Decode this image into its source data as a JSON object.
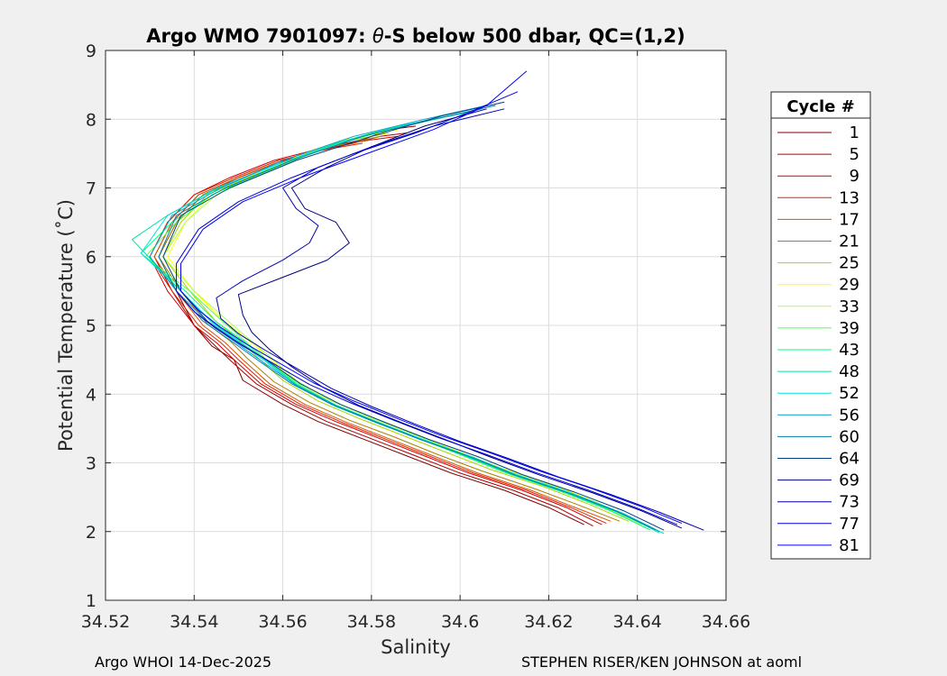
{
  "chart_data": {
    "type": "line",
    "title": "Argo WMO 7901097: θ-S below 500 dbar,  QC=(1,2)",
    "title_parts": {
      "before": "Argo WMO 7901097: ",
      "theta": "θ",
      "after": "-S below 500 dbar,  QC=(1,2)"
    },
    "xlabel": "Salinity",
    "ylabel": "Potential Temperature (˚C)",
    "xlim": [
      34.52,
      34.66
    ],
    "ylim": [
      1,
      9
    ],
    "xticks": [
      "34.52",
      "34.54",
      "34.56",
      "34.58",
      "34.6",
      "34.62",
      "34.64",
      "34.66"
    ],
    "yticks": [
      "1",
      "2",
      "3",
      "4",
      "5",
      "6",
      "7",
      "8",
      "9"
    ],
    "grid": true,
    "legend_title": "Cycle #",
    "legend_position": "outside-right",
    "series": [
      {
        "name": "1",
        "color": "#800000",
        "x": [
          34.628,
          34.62,
          34.61,
          34.598,
          34.588,
          34.578,
          34.568,
          34.56,
          34.551,
          34.549,
          34.544,
          34.54,
          34.536,
          34.532,
          34.536,
          34.542,
          34.55,
          34.56,
          34.57,
          34.578,
          34.584,
          34.59
        ],
        "y": [
          2.1,
          2.35,
          2.6,
          2.85,
          3.1,
          3.35,
          3.6,
          3.85,
          4.2,
          4.5,
          4.7,
          5.0,
          5.5,
          6.0,
          6.5,
          6.9,
          7.15,
          7.4,
          7.6,
          7.7,
          7.85,
          7.9
        ]
      },
      {
        "name": "5",
        "color": "#aa0000",
        "x": [
          34.63,
          34.622,
          34.612,
          34.6,
          34.59,
          34.58,
          34.57,
          34.562,
          34.554,
          34.548,
          34.544,
          34.54,
          34.535,
          34.531,
          34.535,
          34.541,
          34.55,
          34.558,
          34.568,
          34.576,
          34.582,
          34.588
        ],
        "y": [
          2.08,
          2.35,
          2.6,
          2.85,
          3.1,
          3.35,
          3.6,
          3.85,
          4.15,
          4.5,
          4.75,
          5.0,
          5.5,
          6.0,
          6.5,
          6.9,
          7.15,
          7.35,
          7.55,
          7.65,
          7.75,
          7.8
        ]
      },
      {
        "name": "9",
        "color": "#d40000",
        "x": [
          34.632,
          34.624,
          34.614,
          34.602,
          34.592,
          34.582,
          34.572,
          34.563,
          34.555,
          34.549,
          34.545,
          34.54,
          34.534,
          34.53,
          34.534,
          34.54,
          34.548,
          34.558,
          34.57,
          34.58,
          34.586
        ],
        "y": [
          2.1,
          2.35,
          2.6,
          2.85,
          3.1,
          3.35,
          3.6,
          3.85,
          4.15,
          4.5,
          4.75,
          5.0,
          5.5,
          6.0,
          6.5,
          6.9,
          7.15,
          7.4,
          7.6,
          7.7,
          7.75
        ]
      },
      {
        "name": "13",
        "color": "#e02000",
        "x": [
          34.633,
          34.625,
          34.615,
          34.603,
          34.593,
          34.583,
          34.573,
          34.564,
          34.556,
          34.55,
          34.546,
          34.541,
          34.535,
          34.53,
          34.534,
          34.54,
          34.549,
          34.559,
          34.569,
          34.578
        ],
        "y": [
          2.12,
          2.35,
          2.6,
          2.85,
          3.1,
          3.35,
          3.6,
          3.85,
          4.15,
          4.5,
          4.75,
          5.0,
          5.5,
          6.0,
          6.5,
          6.9,
          7.15,
          7.4,
          7.55,
          7.65
        ]
      },
      {
        "name": "17",
        "color": "#d45500",
        "x": [
          34.634,
          34.626,
          34.616,
          34.604,
          34.594,
          34.584,
          34.574,
          34.565,
          34.557,
          34.551,
          34.547,
          34.542,
          34.536,
          34.531,
          34.535,
          34.541,
          34.55,
          34.56,
          34.57,
          34.58
        ],
        "y": [
          2.15,
          2.35,
          2.6,
          2.85,
          3.1,
          3.35,
          3.6,
          3.85,
          4.15,
          4.5,
          4.75,
          5.0,
          5.5,
          6.0,
          6.5,
          6.9,
          7.15,
          7.4,
          7.6,
          7.7
        ]
      },
      {
        "name": "21",
        "color": "#aa8000",
        "x": [
          34.636,
          34.627,
          34.617,
          34.605,
          34.595,
          34.585,
          34.575,
          34.566,
          34.558,
          34.552,
          34.548,
          34.543,
          34.537,
          34.532,
          34.536,
          34.542,
          34.551,
          34.561,
          34.571,
          34.582
        ],
        "y": [
          2.15,
          2.38,
          2.62,
          2.88,
          3.12,
          3.38,
          3.62,
          3.88,
          4.18,
          4.52,
          4.78,
          5.02,
          5.5,
          6.0,
          6.5,
          6.9,
          7.15,
          7.4,
          7.6,
          7.75
        ]
      },
      {
        "name": "25",
        "color": "#aad400",
        "x": [
          34.638,
          34.629,
          34.619,
          34.607,
          34.597,
          34.587,
          34.577,
          34.568,
          34.56,
          34.554,
          34.55,
          34.545,
          34.539,
          34.533,
          34.537,
          34.543,
          34.552,
          34.562,
          34.572,
          34.584
        ],
        "y": [
          2.15,
          2.4,
          2.65,
          2.9,
          3.15,
          3.4,
          3.65,
          3.9,
          4.2,
          4.55,
          4.8,
          5.05,
          5.5,
          6.0,
          6.5,
          6.9,
          7.15,
          7.4,
          7.65,
          7.8
        ]
      },
      {
        "name": "29",
        "color": "#ffff00",
        "x": [
          34.64,
          34.631,
          34.621,
          34.609,
          34.599,
          34.589,
          34.579,
          34.57,
          34.562,
          34.556,
          34.551,
          34.546,
          34.54,
          34.534,
          34.538,
          34.544,
          34.553,
          34.563,
          34.574,
          34.586
        ],
        "y": [
          2.15,
          2.42,
          2.68,
          2.93,
          3.18,
          3.43,
          3.68,
          3.93,
          4.23,
          4.58,
          4.85,
          5.1,
          5.5,
          6.0,
          6.5,
          6.9,
          7.15,
          7.45,
          7.7,
          7.85
        ]
      },
      {
        "name": "33",
        "color": "#aaff55",
        "x": [
          34.641,
          34.632,
          34.622,
          34.61,
          34.6,
          34.59,
          34.58,
          34.571,
          34.563,
          34.557,
          34.552,
          34.547,
          34.54,
          34.533,
          34.538,
          34.545,
          34.555,
          34.566,
          34.578,
          34.59
        ],
        "y": [
          2.1,
          2.38,
          2.64,
          2.9,
          3.15,
          3.4,
          3.65,
          3.9,
          4.2,
          4.55,
          4.82,
          5.1,
          5.5,
          6.0,
          6.5,
          6.9,
          7.2,
          7.5,
          7.75,
          7.95
        ]
      },
      {
        "name": "39",
        "color": "#55ff55",
        "x": [
          34.642,
          34.633,
          34.622,
          34.61,
          34.6,
          34.59,
          34.58,
          34.571,
          34.563,
          34.556,
          34.551,
          34.546,
          34.539,
          34.529,
          34.536,
          34.544,
          34.555,
          34.568,
          34.58,
          34.594
        ],
        "y": [
          2.05,
          2.34,
          2.6,
          2.86,
          3.12,
          3.37,
          3.62,
          3.87,
          4.17,
          4.52,
          4.8,
          5.08,
          5.5,
          6.0,
          6.5,
          6.9,
          7.2,
          7.55,
          7.8,
          8.0
        ]
      },
      {
        "name": "43",
        "color": "#00ff80",
        "x": [
          34.643,
          34.634,
          34.623,
          34.611,
          34.601,
          34.591,
          34.581,
          34.571,
          34.563,
          34.556,
          34.551,
          34.545,
          34.538,
          34.528,
          34.535,
          34.544,
          34.556,
          34.57,
          34.584,
          34.598
        ],
        "y": [
          2.02,
          2.3,
          2.58,
          2.84,
          3.1,
          3.35,
          3.6,
          3.85,
          4.15,
          4.5,
          4.78,
          5.05,
          5.5,
          6.05,
          6.5,
          6.9,
          7.25,
          7.6,
          7.85,
          8.05
        ]
      },
      {
        "name": "48",
        "color": "#00e0a0",
        "x": [
          34.645,
          34.636,
          34.625,
          34.613,
          34.603,
          34.592,
          34.582,
          34.572,
          34.563,
          34.556,
          34.55,
          34.544,
          34.537,
          34.526,
          34.534,
          34.544,
          34.557,
          34.572,
          34.586,
          34.602
        ],
        "y": [
          1.98,
          2.28,
          2.56,
          2.82,
          3.08,
          3.33,
          3.58,
          3.84,
          4.14,
          4.5,
          4.78,
          5.05,
          5.5,
          6.25,
          6.6,
          6.95,
          7.3,
          7.65,
          7.9,
          8.1
        ]
      },
      {
        "name": "52",
        "color": "#00e0e0",
        "x": [
          34.646,
          34.637,
          34.626,
          34.614,
          34.603,
          34.593,
          34.582,
          34.572,
          34.563,
          34.556,
          34.55,
          34.544,
          34.537,
          34.528,
          34.534,
          34.545,
          34.559,
          34.575,
          34.59,
          34.605
        ],
        "y": [
          1.97,
          2.26,
          2.54,
          2.8,
          3.06,
          3.31,
          3.56,
          3.82,
          4.12,
          4.48,
          4.76,
          5.04,
          5.5,
          6.05,
          6.6,
          7.0,
          7.35,
          7.7,
          7.95,
          8.15
        ]
      },
      {
        "name": "56",
        "color": "#00a0d4",
        "x": [
          34.645,
          34.636,
          34.625,
          34.613,
          34.603,
          34.592,
          34.582,
          34.572,
          34.563,
          34.555,
          34.549,
          34.543,
          34.536,
          34.53,
          34.535,
          34.546,
          34.56,
          34.576,
          34.592,
          34.606
        ],
        "y": [
          2.0,
          2.28,
          2.55,
          2.81,
          3.07,
          3.32,
          3.57,
          3.83,
          4.13,
          4.49,
          4.77,
          5.05,
          5.5,
          6.0,
          6.6,
          7.0,
          7.4,
          7.75,
          8.0,
          8.2
        ]
      },
      {
        "name": "60",
        "color": "#0080aa",
        "x": [
          34.644,
          34.635,
          34.624,
          34.612,
          34.602,
          34.591,
          34.581,
          34.571,
          34.562,
          34.554,
          34.548,
          34.542,
          34.536,
          34.532,
          34.536,
          34.547,
          34.562,
          34.578,
          34.594,
          34.608
        ],
        "y": [
          2.03,
          2.3,
          2.57,
          2.83,
          3.09,
          3.34,
          3.59,
          3.85,
          4.15,
          4.51,
          4.79,
          5.06,
          5.5,
          6.0,
          6.6,
          7.0,
          7.4,
          7.75,
          8.0,
          8.2
        ]
      },
      {
        "name": "64",
        "color": "#004080",
        "x": [
          34.646,
          34.637,
          34.626,
          34.614,
          34.604,
          34.593,
          34.583,
          34.573,
          34.564,
          34.556,
          34.549,
          34.543,
          34.537,
          34.533,
          34.537,
          34.548,
          34.563,
          34.58,
          34.596,
          34.61
        ],
        "y": [
          2.02,
          2.3,
          2.57,
          2.83,
          3.09,
          3.34,
          3.59,
          3.85,
          4.15,
          4.51,
          4.79,
          5.06,
          5.5,
          6.0,
          6.6,
          7.0,
          7.4,
          7.75,
          8.05,
          8.25
        ]
      },
      {
        "name": "69",
        "color": "#000080",
        "x": [
          34.65,
          34.641,
          34.63,
          34.618,
          34.607,
          34.597,
          34.587,
          34.577,
          34.569,
          34.562,
          34.557,
          34.553,
          34.551,
          34.55,
          34.56,
          34.57,
          34.575,
          34.572,
          34.565,
          34.562,
          34.57,
          34.58,
          34.592,
          34.606
        ],
        "y": [
          2.05,
          2.3,
          2.56,
          2.82,
          3.08,
          3.33,
          3.58,
          3.84,
          4.1,
          4.4,
          4.65,
          4.9,
          5.15,
          5.45,
          5.7,
          5.95,
          6.2,
          6.5,
          6.7,
          7.0,
          7.3,
          7.6,
          7.9,
          8.15
        ]
      },
      {
        "name": "73",
        "color": "#0000aa",
        "x": [
          34.655,
          34.645,
          34.634,
          34.622,
          34.611,
          34.6,
          34.59,
          34.58,
          34.571,
          34.563,
          34.556,
          34.55,
          34.546,
          34.545,
          34.551,
          34.56,
          34.566,
          34.568,
          34.563,
          34.56,
          34.568,
          34.58,
          34.594,
          34.61
        ],
        "y": [
          2.02,
          2.28,
          2.54,
          2.8,
          3.06,
          3.31,
          3.56,
          3.82,
          4.08,
          4.38,
          4.64,
          4.88,
          5.1,
          5.4,
          5.65,
          5.95,
          6.2,
          6.45,
          6.7,
          7.0,
          7.3,
          7.6,
          7.9,
          8.15
        ]
      },
      {
        "name": "77",
        "color": "#0000d4",
        "x": [
          34.649,
          34.64,
          34.629,
          34.617,
          34.606,
          34.595,
          34.585,
          34.575,
          34.566,
          34.558,
          34.551,
          34.545,
          34.54,
          34.536,
          34.536,
          34.541,
          34.55,
          34.562,
          34.576,
          34.59,
          34.602,
          34.613
        ],
        "y": [
          2.1,
          2.34,
          2.6,
          2.86,
          3.12,
          3.37,
          3.62,
          3.88,
          4.14,
          4.44,
          4.7,
          4.95,
          5.2,
          5.5,
          5.9,
          6.4,
          6.8,
          7.15,
          7.5,
          7.8,
          8.1,
          8.4
        ]
      },
      {
        "name": "81",
        "color": "#0000ff",
        "x": [
          34.65,
          34.641,
          34.63,
          34.618,
          34.607,
          34.596,
          34.586,
          34.576,
          34.567,
          34.559,
          34.552,
          34.546,
          34.541,
          34.537,
          34.537,
          34.542,
          34.551,
          34.564,
          34.579,
          34.594,
          34.606,
          34.615
        ],
        "y": [
          2.12,
          2.36,
          2.62,
          2.88,
          3.14,
          3.39,
          3.64,
          3.9,
          4.16,
          4.46,
          4.72,
          4.97,
          5.22,
          5.5,
          5.9,
          6.4,
          6.8,
          7.15,
          7.5,
          7.85,
          8.2,
          8.7
        ]
      }
    ]
  },
  "footer": {
    "left": "Argo WHOI 14-Dec-2025",
    "right": "STEPHEN RISER/KEN JOHNSON at aoml"
  }
}
